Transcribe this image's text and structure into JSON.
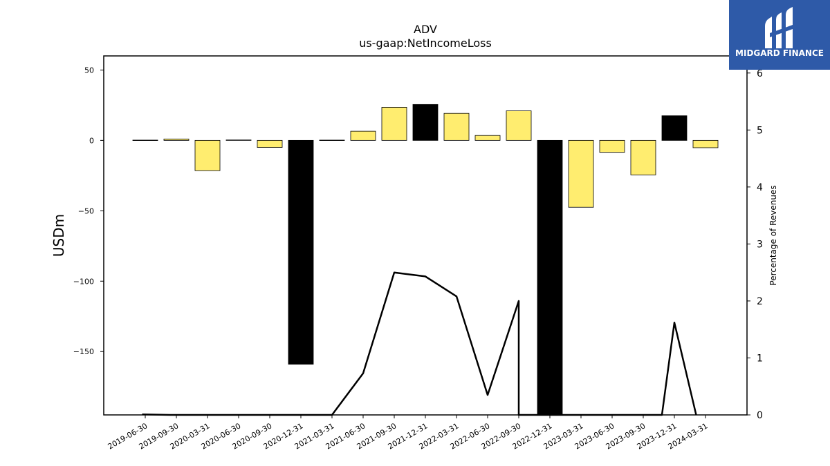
{
  "chart_data": {
    "type": "bar",
    "title": "ADV",
    "subtitle": "us-gaap:NetIncomeLoss",
    "ylabel": "USDm",
    "y2label": "Percentage of Revenues",
    "ylim": [
      -195,
      60
    ],
    "y2lim": [
      0,
      6.3
    ],
    "yticks": [
      50,
      0,
      -50,
      -100,
      -150
    ],
    "yticklabels": [
      "50",
      "0",
      "−50",
      "−100",
      "−150"
    ],
    "y2ticks": [
      0,
      1,
      2,
      3,
      4,
      5,
      6
    ],
    "y2ticklabels": [
      "0",
      "1",
      "2",
      "3",
      "4",
      "5",
      "6"
    ],
    "categories": [
      "2019-06-30",
      "2019-09-30",
      "2020-03-31",
      "2020-06-30",
      "2020-09-30",
      "2020-12-31",
      "2021-03-31",
      "2021-06-30",
      "2021-09-30",
      "2021-12-31",
      "2022-03-31",
      "2022-06-30",
      "2022-09-30",
      "2022-12-31",
      "2023-03-31",
      "2023-06-30",
      "2023-09-30",
      "2023-12-31",
      "2024-03-31"
    ],
    "series": [
      {
        "kind": "bar",
        "axis": "left",
        "values": [
          0.2,
          1,
          -21.5,
          0.3,
          -5,
          -159,
          0.2,
          6.5,
          23.5,
          25.5,
          19.2,
          3.5,
          21,
          -196,
          -47.5,
          -8.5,
          -24.5,
          17.5,
          -5.2
        ],
        "colors": [
          "#ffed6f",
          "#ffed6f",
          "#ffed6f",
          "#ffed6f",
          "#ffed6f",
          "#000000",
          "#ffed6f",
          "#ffed6f",
          "#ffed6f",
          "#000000",
          "#ffed6f",
          "#ffed6f",
          "#ffed6f",
          "#000000",
          "#ffed6f",
          "#ffed6f",
          "#ffed6f",
          "#000000",
          "#ffed6f"
        ]
      },
      {
        "kind": "line",
        "axis": "right",
        "color": "#000000",
        "points": [
          {
            "x": -0.1,
            "y": 0.01
          },
          {
            "x": 0.8,
            "y": 0.0
          },
          {
            "x": 6.0,
            "y": 0.0
          },
          {
            "x": 7.0,
            "y": 0.73
          },
          {
            "x": 8.0,
            "y": 2.5
          },
          {
            "x": 9.0,
            "y": 2.43
          },
          {
            "x": 10.0,
            "y": 2.08
          },
          {
            "x": 11.0,
            "y": 0.35
          },
          {
            "x": 12.0,
            "y": 2.0
          },
          {
            "x": 12.0,
            "y": 0.0
          },
          {
            "x": 16.6,
            "y": 0.0
          },
          {
            "x": 17.0,
            "y": 1.62
          },
          {
            "x": 17.7,
            "y": 0.0
          }
        ]
      }
    ],
    "grid": false,
    "legend": "none"
  },
  "logo": {
    "text": "MIDGARD FINANCE",
    "bg_color": "#2e5aa8"
  }
}
